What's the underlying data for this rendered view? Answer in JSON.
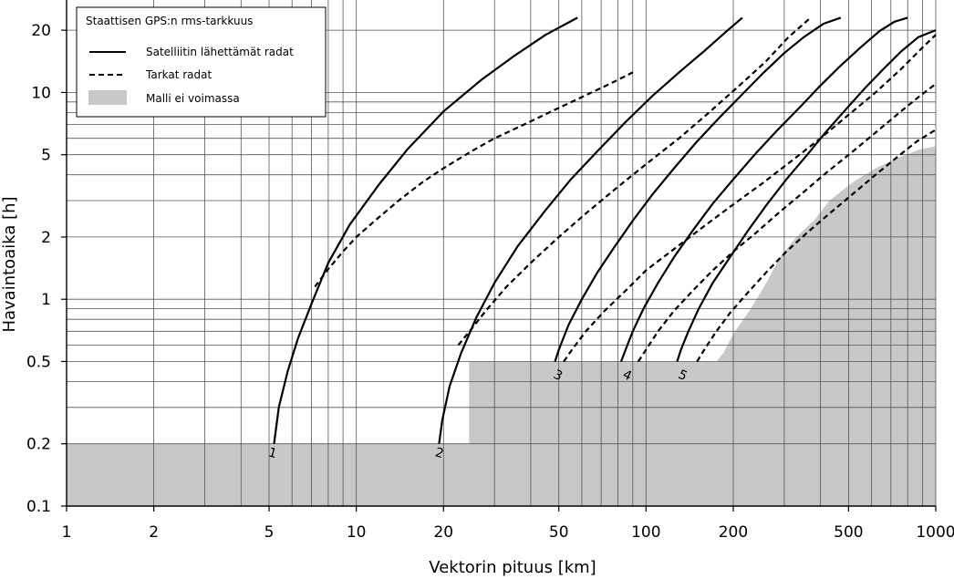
{
  "chart_data": {
    "type": "line",
    "title": "",
    "xlabel": "Vektorin pituus [km]",
    "ylabel": "Havaintoaika [h]",
    "x_scale": "log",
    "y_scale": "log",
    "xlim": [
      1,
      1000
    ],
    "ylim": [
      0.1,
      28
    ],
    "grid": true,
    "x_ticks": [
      1,
      2,
      5,
      10,
      20,
      50,
      100,
      200,
      500,
      1000
    ],
    "x_tick_labels": [
      "1",
      "2",
      "5",
      "10",
      "20",
      "50",
      "100",
      "200",
      "500",
      "1000"
    ],
    "y_ticks": [
      0.1,
      0.2,
      0.5,
      1,
      2,
      5,
      10,
      20
    ],
    "y_tick_labels": [
      "0.1",
      "0.2",
      "0.5",
      "1",
      "2",
      "5",
      "10",
      "20"
    ],
    "legend": {
      "title": "Staattisen GPS:n rms-tarkkuus",
      "placement": "top-left",
      "entries": [
        {
          "label": "Satelliitin lähettämät radat",
          "style": "solid"
        },
        {
          "label": "Tarkat radat",
          "style": "dashed"
        },
        {
          "label": "Malli ei voimassa",
          "style": "fill"
        }
      ]
    },
    "colors": {
      "line": "#000000",
      "invalid_fill": "#c8c8c8",
      "grid": "#555555"
    },
    "invalid_region": {
      "label": "Malli ei voimassa",
      "outline": [
        [
          1,
          0.1
        ],
        [
          1,
          0.2
        ],
        [
          24.5,
          0.2
        ],
        [
          24.5,
          0.5
        ],
        [
          175,
          0.5
        ],
        [
          185,
          0.55
        ],
        [
          200,
          0.68
        ],
        [
          230,
          0.9
        ],
        [
          260,
          1.2
        ],
        [
          290,
          1.6
        ],
        [
          330,
          2.0
        ],
        [
          380,
          2.4
        ],
        [
          430,
          3.0
        ],
        [
          520,
          3.7
        ],
        [
          620,
          4.3
        ],
        [
          760,
          4.9
        ],
        [
          880,
          5.3
        ],
        [
          1000,
          5.5
        ],
        [
          1000,
          0.1
        ]
      ]
    },
    "series": [
      {
        "name": "Satelliitin lähettämät radat",
        "curve": "1",
        "style": "solid",
        "x": [
          5.2,
          5.4,
          5.8,
          6.3,
          7,
          8,
          9.5,
          12,
          15,
          20,
          27,
          35,
          45,
          58
        ],
        "y": [
          0.2,
          0.3,
          0.45,
          0.65,
          0.95,
          1.5,
          2.3,
          3.6,
          5.3,
          8.1,
          11.5,
          15,
          19,
          23
        ]
      },
      {
        "name": "Tarkat radat",
        "curve": "1",
        "style": "dashed",
        "x": [
          7.2,
          8,
          9,
          10,
          12,
          14,
          17,
          20,
          25,
          30,
          38,
          48,
          60,
          75,
          90
        ],
        "y": [
          1.15,
          1.4,
          1.7,
          2.0,
          2.5,
          3.0,
          3.7,
          4.3,
          5.2,
          6.0,
          7.0,
          8.2,
          9.5,
          11,
          12.5
        ]
      },
      {
        "name": "Satelliitin lähettämät radat",
        "curve": "2",
        "style": "solid",
        "x": [
          19.3,
          19.8,
          21,
          23,
          26,
          30,
          36,
          45,
          55,
          68,
          85,
          105,
          130,
          160,
          190,
          215
        ],
        "y": [
          0.2,
          0.26,
          0.38,
          0.55,
          0.82,
          1.2,
          1.8,
          2.7,
          3.8,
          5.2,
          7.2,
          9.6,
          12.5,
          16,
          19.8,
          23
        ]
      },
      {
        "name": "Tarkat radat",
        "curve": "2",
        "style": "dashed",
        "x": [
          22.5,
          25,
          28,
          33,
          40,
          50,
          62,
          78,
          100,
          130,
          165,
          210,
          260,
          310,
          370
        ],
        "y": [
          0.6,
          0.72,
          0.88,
          1.15,
          1.5,
          2.0,
          2.6,
          3.4,
          4.5,
          6.0,
          8.0,
          10.8,
          14.2,
          18.5,
          23
        ]
      },
      {
        "name": "Satelliitin lähettämät radat",
        "curve": "3",
        "style": "solid",
        "x": [
          48.5,
          50,
          54,
          60,
          68,
          78,
          90,
          105,
          125,
          150,
          180,
          215,
          255,
          300,
          350,
          410,
          470
        ],
        "y": [
          0.5,
          0.57,
          0.75,
          1.0,
          1.35,
          1.8,
          2.4,
          3.2,
          4.3,
          5.8,
          7.6,
          9.8,
          12.5,
          15.5,
          18.5,
          21.5,
          23
        ]
      },
      {
        "name": "Tarkat radat",
        "curve": "3",
        "style": "dashed",
        "x": [
          52,
          56,
          62,
          72,
          85,
          100,
          125,
          155,
          195,
          250,
          320,
          400,
          500,
          620,
          760,
          900,
          1000
        ],
        "y": [
          0.5,
          0.58,
          0.7,
          0.88,
          1.1,
          1.38,
          1.75,
          2.2,
          2.8,
          3.6,
          4.7,
          6.0,
          7.8,
          10.0,
          13.0,
          16.5,
          19
        ]
      },
      {
        "name": "Satelliitin lähettämät radat",
        "curve": "4",
        "style": "solid",
        "x": [
          82,
          85,
          90,
          98,
          110,
          125,
          145,
          170,
          200,
          240,
          285,
          340,
          400,
          470,
          550,
          640,
          720,
          800
        ],
        "y": [
          0.5,
          0.57,
          0.7,
          0.9,
          1.2,
          1.6,
          2.15,
          2.9,
          3.8,
          5.1,
          6.6,
          8.5,
          10.8,
          13.5,
          16.5,
          19.8,
          22,
          23
        ]
      },
      {
        "name": "Tarkat radat",
        "curve": "4",
        "style": "dashed",
        "x": [
          94,
          100,
          110,
          125,
          145,
          170,
          200,
          240,
          290,
          350,
          420,
          510,
          620,
          750,
          880,
          1000
        ],
        "y": [
          0.5,
          0.57,
          0.7,
          0.88,
          1.1,
          1.38,
          1.7,
          2.1,
          2.65,
          3.3,
          4.1,
          5.1,
          6.4,
          8.0,
          9.6,
          11
        ]
      },
      {
        "name": "Satelliitin lähettämät radat",
        "curve": "5",
        "style": "solid",
        "x": [
          128,
          132,
          140,
          152,
          170,
          195,
          225,
          260,
          305,
          360,
          420,
          490,
          570,
          660,
          760,
          870,
          1000
        ],
        "y": [
          0.5,
          0.57,
          0.7,
          0.9,
          1.2,
          1.6,
          2.15,
          2.85,
          3.8,
          5.0,
          6.5,
          8.3,
          10.5,
          13.0,
          15.8,
          18.5,
          20
        ]
      },
      {
        "name": "Tarkat radat",
        "curve": "5",
        "style": "dashed",
        "x": [
          150,
          160,
          175,
          195,
          225,
          260,
          305,
          360,
          430,
          520,
          620,
          740,
          860,
          1000
        ],
        "y": [
          0.5,
          0.58,
          0.7,
          0.86,
          1.08,
          1.35,
          1.7,
          2.1,
          2.6,
          3.25,
          4.0,
          4.9,
          5.8,
          6.6
        ]
      }
    ],
    "curve_labels": [
      {
        "text": "1",
        "x": 5.1,
        "y": 0.195,
        "rotate": 15
      },
      {
        "text": "2",
        "x": 19.2,
        "y": 0.195,
        "rotate": 15
      },
      {
        "text": "3",
        "x": 49,
        "y": 0.465,
        "rotate": 25
      },
      {
        "text": "4",
        "x": 85,
        "y": 0.465,
        "rotate": 25
      },
      {
        "text": "5",
        "x": 132,
        "y": 0.465,
        "rotate": 25
      }
    ]
  }
}
